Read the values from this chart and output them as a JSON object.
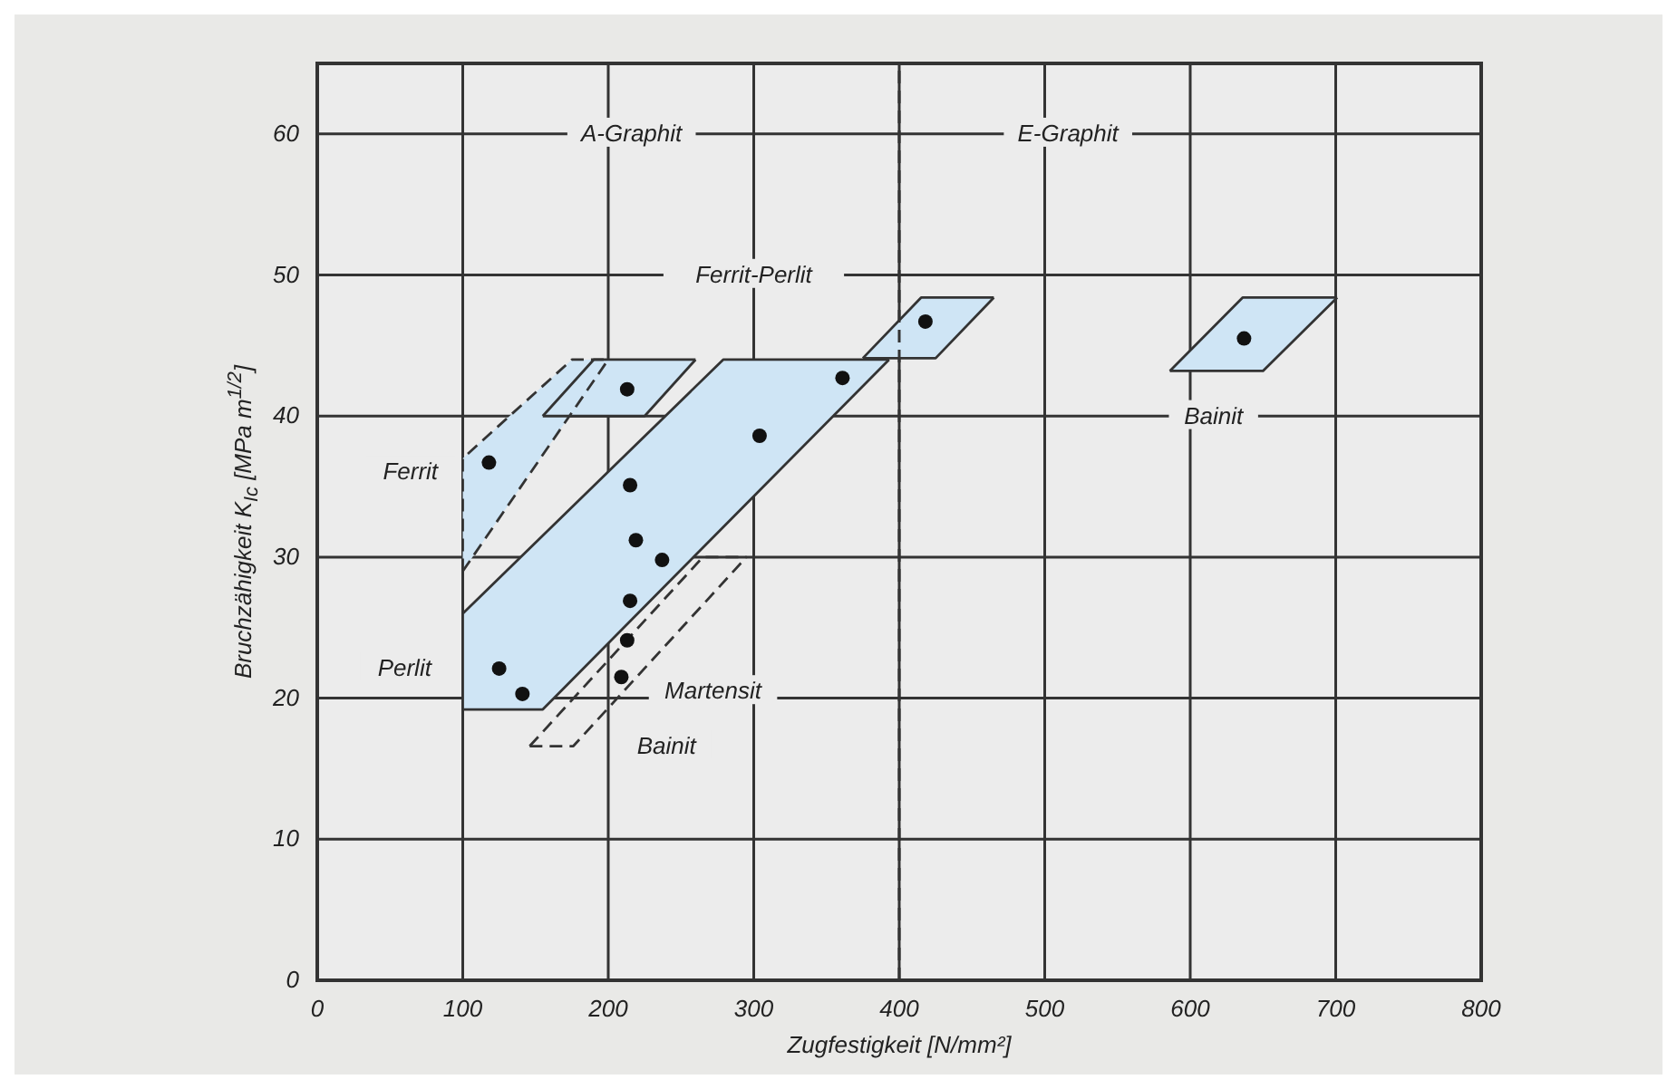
{
  "chart_data": {
    "type": "scatter",
    "xlabel": "Zugfestigkeit [N/mm²]",
    "ylabel": "Bruchzähigkeit K$_{Ic}$ [MPa m$^{1/2}$]",
    "xlim": [
      0,
      800
    ],
    "ylim": [
      0,
      65
    ],
    "xticks": [
      0,
      100,
      200,
      300,
      400,
      500,
      600,
      700,
      800
    ],
    "yticks": [
      0,
      10,
      20,
      30,
      40,
      50,
      60
    ],
    "grid": true,
    "series": [
      {
        "type": "line",
        "color": "#333333",
        "line_style": "solid",
        "x": [
          100,
          100,
          279,
          393
        ],
        "values": [
          19.2,
          26,
          44,
          44
        ]
      },
      {
        "type": "line",
        "color": "#333333",
        "line_style": "solid",
        "x": [
          100,
          155,
          393
        ],
        "values": [
          19.2,
          19.2,
          44
        ]
      },
      {
        "type": "line",
        "color": "#333333",
        "line_style": "dashed",
        "x": [
          100,
          100,
          175,
          200
        ],
        "values": [
          29,
          37,
          44,
          44
        ]
      },
      {
        "type": "line",
        "color": "#333333",
        "line_style": "dashed",
        "x": [
          100,
          200
        ],
        "values": [
          29,
          44
        ]
      },
      {
        "type": "line",
        "color": "#333333",
        "line_style": "solid",
        "x": [
          155,
          190,
          260
        ],
        "values": [
          40,
          44,
          44
        ]
      },
      {
        "type": "line",
        "color": "#333333",
        "line_style": "solid",
        "x": [
          155,
          225,
          260
        ],
        "values": [
          40,
          40,
          44
        ]
      },
      {
        "type": "line",
        "color": "#333333",
        "line_style": "solid",
        "x": [
          375,
          415,
          465
        ],
        "values": [
          44.1,
          48.4,
          48.4
        ]
      },
      {
        "type": "line",
        "color": "#333333",
        "line_style": "solid",
        "x": [
          375,
          425,
          465
        ],
        "values": [
          44.1,
          44.1,
          48.4
        ]
      },
      {
        "type": "line",
        "color": "#333333",
        "line_style": "solid",
        "x": [
          586,
          636,
          701
        ],
        "values": [
          43.2,
          48.4,
          48.4
        ]
      },
      {
        "type": "line",
        "color": "#333333",
        "line_style": "solid",
        "x": [
          586,
          650,
          701
        ],
        "values": [
          43.2,
          43.2,
          48.4
        ]
      },
      {
        "type": "line",
        "color": "#333333",
        "line_style": "dashed",
        "x": [
          146,
          265,
          295
        ],
        "values": [
          16.6,
          30,
          30
        ]
      },
      {
        "type": "line",
        "color": "#333333",
        "line_style": "dashed",
        "x": [
          146,
          176,
          295
        ],
        "values": [
          16.6,
          16.6,
          30
        ]
      },
      {
        "color": "#111111",
        "marker": "circle",
        "x": [
          118,
          213,
          215,
          219,
          237,
          215,
          213,
          209,
          125,
          141,
          304,
          361,
          418,
          637
        ],
        "values": [
          36.7,
          41.9,
          35.1,
          31.2,
          29.8,
          26.9,
          24.1,
          21.5,
          22.1,
          20.3,
          38.6,
          42.7,
          46.7,
          45.5
        ]
      }
    ],
    "ref_lines": [
      {
        "axis": "x",
        "value": 400,
        "line_style": "dashed",
        "color": "#333333"
      }
    ],
    "annotations": [
      "A-Graphit",
      "E-Graphit",
      "Ferrit-Perlit",
      "Ferrit",
      "Perlit",
      "Martensit",
      "Bainit",
      "Bainit"
    ]
  }
}
